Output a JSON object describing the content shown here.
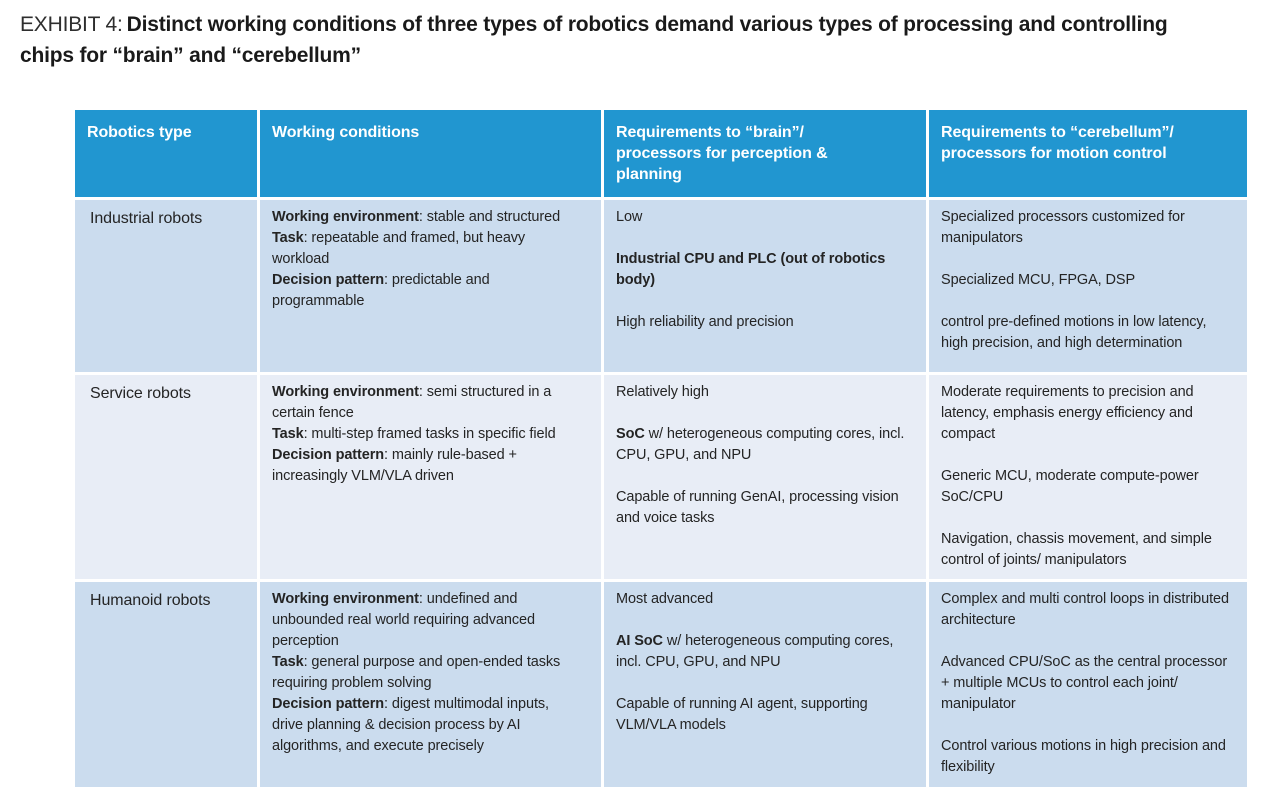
{
  "exhibit": {
    "label": "EXHIBIT 4:",
    "title": "Distinct working conditions of three types of robotics demand various types of processing and controlling chips for “brain” and “cerebellum”"
  },
  "colors": {
    "header_bg": "#2196d0",
    "header_text": "#ffffff",
    "row_dark_bg": "#cbdcee",
    "row_light_bg": "#e8edf6",
    "body_text": "#242424",
    "title_text": "#1a1a1a"
  },
  "table": {
    "columns": [
      {
        "label": "Robotics type"
      },
      {
        "label": "Working conditions"
      },
      {
        "label": "Requirements to “brain”/ processors for perception & planning"
      },
      {
        "label": "Requirements to “cerebellum”/ processors for motion control"
      }
    ],
    "rows": [
      {
        "type": "Industrial robots",
        "conditions": [
          {
            "label": "Working environment",
            "text": ": stable and structured"
          },
          {
            "label": "Task",
            "text": ": repeatable and framed, but heavy workload"
          },
          {
            "label": "Decision pattern",
            "text": ": predictable and programmable"
          }
        ],
        "brain": [
          {
            "bold": "",
            "text": "Low"
          },
          {
            "bold": "Industrial CPU and PLC (out of robotics body)",
            "text": ""
          },
          {
            "bold": "",
            "text": "High reliability and precision"
          }
        ],
        "cerebellum": [
          "Specialized processors customized for manipulators",
          "Specialized MCU, FPGA, DSP",
          "control pre-defined motions in low latency, high precision, and high determination"
        ]
      },
      {
        "type": "Service robots",
        "conditions": [
          {
            "label": "Working environment",
            "text": ": semi structured in a certain fence"
          },
          {
            "label": "Task",
            "text": ": multi-step framed tasks in specific field"
          },
          {
            "label": "Decision pattern",
            "text": ": mainly rule-based + increasingly VLM/VLA driven"
          }
        ],
        "brain": [
          {
            "bold": "",
            "text": "Relatively high"
          },
          {
            "bold": "SoC",
            "text": " w/ heterogeneous computing cores, incl. CPU, GPU, and NPU"
          },
          {
            "bold": "",
            "text": "Capable of running GenAI, processing vision and voice tasks"
          }
        ],
        "cerebellum": [
          "Moderate requirements to precision and latency, emphasis energy efficiency and compact",
          "Generic MCU, moderate compute-power SoC/CPU",
          "Navigation, chassis movement, and simple control of joints/ manipulators"
        ]
      },
      {
        "type": "Humanoid robots",
        "conditions": [
          {
            "label": "Working environment",
            "text": ": undefined and unbounded real world requiring advanced perception"
          },
          {
            "label": "Task",
            "text": ": general purpose and open-ended tasks requiring problem solving"
          },
          {
            "label": "Decision pattern",
            "text": ": digest multimodal inputs, drive planning & decision process by AI algorithms, and execute precisely"
          }
        ],
        "brain": [
          {
            "bold": "",
            "text": "Most advanced"
          },
          {
            "bold": "AI SoC",
            "text": " w/ heterogeneous computing cores, incl. CPU, GPU, and NPU"
          },
          {
            "bold": "",
            "text": "Capable of running AI agent, supporting VLM/VLA models"
          }
        ],
        "cerebellum": [
          "Complex and multi control loops in distributed architecture",
          "Advanced CPU/SoC as the central processor + multiple MCUs to control each joint/ manipulator",
          "Control various motions in high precision and flexibility"
        ]
      }
    ]
  }
}
